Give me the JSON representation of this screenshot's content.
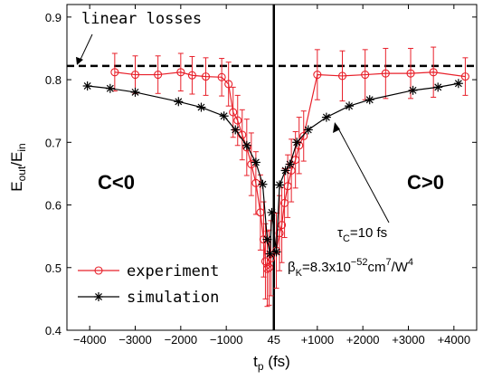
{
  "chart_data": {
    "type": "line",
    "xlabel": "t",
    "xlabel_sub": "p",
    "xlabel_unit": " (fs)",
    "ylabel": "E",
    "ylabel_sub1": "out",
    "ylabel_mid": "/E",
    "ylabel_sub2": "in",
    "xlim": [
      -4500,
      4500
    ],
    "ylim": [
      0.4,
      0.92
    ],
    "x_ticks": [
      {
        "value": -4000,
        "label": "−4000"
      },
      {
        "value": -3000,
        "label": "−3000"
      },
      {
        "value": -2000,
        "label": "−2000"
      },
      {
        "value": -1000,
        "label": "−1000"
      },
      {
        "value": 45,
        "label": "45"
      },
      {
        "value": 1000,
        "label": "+1000"
      },
      {
        "value": 2000,
        "label": "+2000"
      },
      {
        "value": 3000,
        "label": "+3000"
      },
      {
        "value": 4000,
        "label": "+4000"
      }
    ],
    "y_ticks": [
      {
        "value": 0.4,
        "label": "0.4"
      },
      {
        "value": 0.5,
        "label": "0.5"
      },
      {
        "value": 0.6,
        "label": "0.6"
      },
      {
        "value": 0.7,
        "label": "0.7"
      },
      {
        "value": 0.8,
        "label": "0.8"
      },
      {
        "value": 0.9,
        "label": "0.9"
      }
    ],
    "reference_line": {
      "y": 0.822,
      "label": "linear losses"
    },
    "vertical_line": {
      "x": 45
    },
    "series": [
      {
        "name": "experiment",
        "color": "#e8202a",
        "marker": "circle",
        "points": [
          {
            "x": -3450,
            "y": 0.812,
            "err": 0.03
          },
          {
            "x": -3000,
            "y": 0.808,
            "err": 0.03
          },
          {
            "x": -2500,
            "y": 0.808,
            "err": 0.03
          },
          {
            "x": -2000,
            "y": 0.812,
            "err": 0.03
          },
          {
            "x": -1750,
            "y": 0.807,
            "err": 0.03
          },
          {
            "x": -1450,
            "y": 0.805,
            "err": 0.03
          },
          {
            "x": -1100,
            "y": 0.804,
            "err": 0.03
          },
          {
            "x": -950,
            "y": 0.793,
            "err": 0.035
          },
          {
            "x": -850,
            "y": 0.748,
            "err": 0.04
          },
          {
            "x": -750,
            "y": 0.735,
            "err": 0.04
          },
          {
            "x": -650,
            "y": 0.712,
            "err": 0.04
          },
          {
            "x": -550,
            "y": 0.692,
            "err": 0.045
          },
          {
            "x": -450,
            "y": 0.665,
            "err": 0.05
          },
          {
            "x": -350,
            "y": 0.635,
            "err": 0.05
          },
          {
            "x": -250,
            "y": 0.588,
            "err": 0.06
          },
          {
            "x": -180,
            "y": 0.545,
            "err": 0.06
          },
          {
            "x": -140,
            "y": 0.51,
            "err": 0.06
          },
          {
            "x": -100,
            "y": 0.498,
            "err": 0.06
          },
          {
            "x": -60,
            "y": 0.5,
            "err": 0.06
          },
          {
            "x": -20,
            "y": 0.515,
            "err": 0.06
          },
          {
            "x": 100,
            "y": 0.527,
            "err": 0.06
          },
          {
            "x": 170,
            "y": 0.555,
            "err": 0.06
          },
          {
            "x": 220,
            "y": 0.568,
            "err": 0.06
          },
          {
            "x": 280,
            "y": 0.603,
            "err": 0.055
          },
          {
            "x": 350,
            "y": 0.63,
            "err": 0.05
          },
          {
            "x": 430,
            "y": 0.655,
            "err": 0.05
          },
          {
            "x": 520,
            "y": 0.672,
            "err": 0.045
          },
          {
            "x": 600,
            "y": 0.695,
            "err": 0.045
          },
          {
            "x": 700,
            "y": 0.71,
            "err": 0.04
          },
          {
            "x": 1000,
            "y": 0.808,
            "err": 0.04
          },
          {
            "x": 1550,
            "y": 0.806,
            "err": 0.04
          },
          {
            "x": 2050,
            "y": 0.808,
            "err": 0.04
          },
          {
            "x": 2500,
            "y": 0.81,
            "err": 0.04
          },
          {
            "x": 3050,
            "y": 0.81,
            "err": 0.04
          },
          {
            "x": 3550,
            "y": 0.812,
            "err": 0.04
          },
          {
            "x": 4250,
            "y": 0.805,
            "err": 0.03
          }
        ]
      },
      {
        "name": "simulation",
        "color": "#000000",
        "marker": "asterisk",
        "points": [
          {
            "x": -4050,
            "y": 0.79
          },
          {
            "x": -3550,
            "y": 0.786
          },
          {
            "x": -3000,
            "y": 0.78
          },
          {
            "x": -2050,
            "y": 0.765
          },
          {
            "x": -1550,
            "y": 0.756
          },
          {
            "x": -1050,
            "y": 0.742
          },
          {
            "x": -800,
            "y": 0.72
          },
          {
            "x": -550,
            "y": 0.695
          },
          {
            "x": -350,
            "y": 0.668
          },
          {
            "x": -200,
            "y": 0.633
          },
          {
            "x": -100,
            "y": 0.545
          },
          {
            "x": -40,
            "y": 0.522
          },
          {
            "x": 0,
            "y": 0.588
          },
          {
            "x": 100,
            "y": 0.525
          },
          {
            "x": 170,
            "y": 0.632
          },
          {
            "x": 300,
            "y": 0.655
          },
          {
            "x": 400,
            "y": 0.665
          },
          {
            "x": 550,
            "y": 0.7
          },
          {
            "x": 800,
            "y": 0.72
          },
          {
            "x": 1200,
            "y": 0.74
          },
          {
            "x": 1700,
            "y": 0.758
          },
          {
            "x": 2150,
            "y": 0.768
          },
          {
            "x": 3100,
            "y": 0.783
          },
          {
            "x": 3650,
            "y": 0.788
          },
          {
            "x": 4100,
            "y": 0.794
          }
        ]
      }
    ],
    "annotations": {
      "region_left": "C<0",
      "region_right": "C>0",
      "tau": {
        "sym": "τ",
        "sub": "C",
        "rest": "=10 fs"
      },
      "beta": {
        "sym": "β",
        "sub": "K",
        "rest1": "=8.3x10",
        "sup1": "−52",
        "rest2": "cm",
        "sup2": "7",
        "rest3": "/W",
        "sup3": "4"
      }
    }
  }
}
